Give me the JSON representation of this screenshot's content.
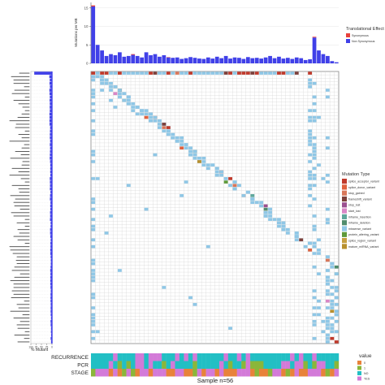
{
  "chart_data": {
    "type": "heatmap",
    "subtype": "oncoplot",
    "n_samples": 56,
    "n_genes": 80,
    "tmb_bar": {
      "ylabel": "Mutations per MB",
      "yticks": [
        0,
        5,
        10,
        15
      ],
      "ylim": [
        0,
        16.5
      ],
      "series": [
        {
          "name": "Synonymous",
          "values": [
            0.3,
            0,
            0,
            0,
            0,
            0,
            0,
            0,
            0,
            0.2,
            0,
            0,
            0,
            0,
            0,
            0,
            0,
            0.1,
            0,
            0,
            0,
            0,
            0,
            0,
            0,
            0,
            0,
            0,
            0,
            0,
            0,
            0,
            0,
            0,
            0,
            0,
            0,
            0,
            0,
            0,
            0,
            0,
            0,
            0,
            0,
            0,
            0,
            0,
            0,
            0,
            0.2,
            0,
            0,
            0,
            0,
            0
          ]
        },
        {
          "name": "Non Synonymous",
          "values": [
            15.4,
            5.0,
            3.5,
            2.0,
            2.5,
            2.2,
            3.0,
            1.8,
            2.0,
            2.3,
            2.0,
            1.6,
            3.0,
            2.2,
            2.5,
            1.8,
            2.2,
            1.6,
            1.5,
            1.6,
            1.2,
            1.4,
            1.7,
            1.5,
            1.3,
            1.2,
            1.6,
            1.3,
            1.8,
            1.4,
            2.0,
            1.3,
            1.6,
            1.5,
            1.2,
            1.7,
            1.4,
            1.5,
            1.3,
            1.6,
            2.0,
            1.4,
            1.8,
            1.3,
            1.5,
            1.2,
            1.6,
            1.4,
            0.9,
            1.1,
            7.0,
            3.5,
            2.5,
            2.0,
            0.6,
            0.3
          ]
        }
      ]
    },
    "legend_translational": {
      "title": "Translational Effect",
      "items": [
        {
          "label": "Synonymous",
          "color": "#e8413c"
        },
        {
          "label": "Non Synonymous",
          "color": "#4040e8"
        }
      ]
    },
    "legend_mutation": {
      "title": "Mutation Type",
      "items": [
        {
          "label": "splice_acceptor_variant",
          "color": "#c0392b"
        },
        {
          "label": "splice_donor_variant",
          "color": "#e0613e"
        },
        {
          "label": "stop_gained",
          "color": "#d9775a"
        },
        {
          "label": "frameshift_variant",
          "color": "#7c3f3a"
        },
        {
          "label": "stop_lost",
          "color": "#9b4f8f"
        },
        {
          "label": "start_lost",
          "color": "#d987c6"
        },
        {
          "label": "inframe_insertion",
          "color": "#5ea79b"
        },
        {
          "label": "inframe_deletion",
          "color": "#4f8c6c"
        },
        {
          "label": "missense_variant",
          "color": "#8fc7e6"
        },
        {
          "label": "protein_altering_variant",
          "color": "#5e9a3a"
        },
        {
          "label": "splice_region_variant",
          "color": "#c6a040"
        },
        {
          "label": "mature_miRNA_variant",
          "color": "#b8902e"
        }
      ]
    },
    "mutated_percentage_axis": {
      "label": "% Mutant",
      "ticks": [
        "100",
        "75",
        "50",
        "25",
        "0"
      ]
    },
    "clinical_tracks": [
      "RECURRENCE",
      "PCR",
      "STAGE"
    ],
    "legend_value": {
      "title": "value",
      "items": [
        {
          "label": "0",
          "color": "#e8823a"
        },
        {
          "label": "1",
          "color": "#8ab63a"
        },
        {
          "label": "NO",
          "color": "#22bfc4"
        },
        {
          "label": "YES",
          "color": "#d37ad8"
        }
      ]
    },
    "xlabel": "Sample n=56"
  },
  "colors": {
    "grid_bg": "#ffffff",
    "grid_line": "#d4d4d4",
    "panel_border": "#888888",
    "missense": "#8fc7e6",
    "bar": "#4040e8",
    "synonymous": "#e8413c"
  }
}
